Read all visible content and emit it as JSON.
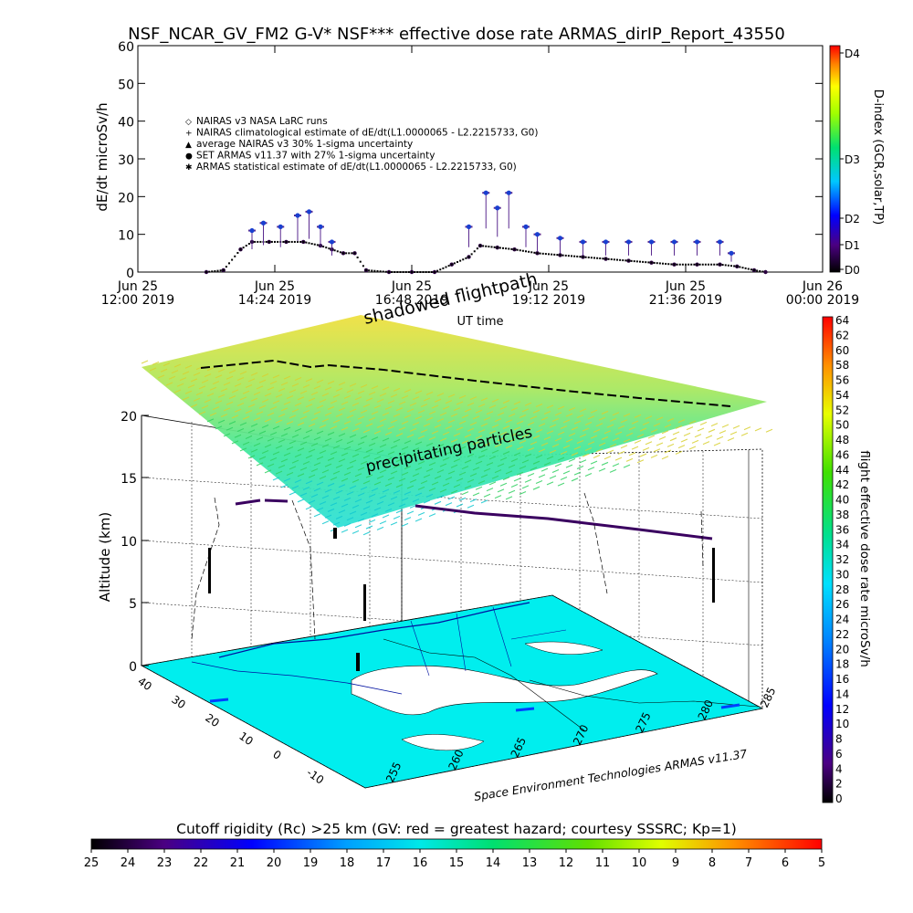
{
  "title": "NSF_NCAR_GV_FM2 G-V* NSF*** effective dose rate ARMAS_dirIP_Report_43550",
  "chart_data": [
    {
      "type": "scatter",
      "ylabel": "dE/dt microSv/h",
      "xlabel": "UT time",
      "ylim": [
        0,
        60
      ],
      "yticks": [
        "0",
        "10",
        "20",
        "30",
        "40",
        "50",
        "60"
      ],
      "xticks": [
        {
          "line1": "Jun 25",
          "line2": "12:00 2019",
          "hour": 12.0
        },
        {
          "line1": "Jun 25",
          "line2": "14:24 2019",
          "hour": 14.4
        },
        {
          "line1": "Jun 25",
          "line2": "16:48 2019",
          "hour": 16.8
        },
        {
          "line1": "Jun 25",
          "line2": "19:12 2019",
          "hour": 19.2
        },
        {
          "line1": "Jun 25",
          "line2": "21:36 2019",
          "hour": 21.6
        },
        {
          "line1": "Jun 26",
          "line2": "00:00 2019",
          "hour": 24.0
        }
      ],
      "xlim_hours": [
        12,
        24
      ],
      "legend": [
        {
          "symbol": "diamond",
          "label": "NAIRAS v3 NASA LaRC runs"
        },
        {
          "symbol": "plus",
          "label": "NAIRAS climatological estimate of dE/dt(L1.0000065 - L2.2215733, G0)"
        },
        {
          "symbol": "triangle",
          "label": "average NAIRAS v3 30% 1-sigma uncertainty"
        },
        {
          "symbol": "blue-dot",
          "label": "SET ARMAS v11.37 with 27% 1-sigma uncertainty"
        },
        {
          "symbol": "asterisk",
          "label": "ARMAS statistical estimate of dE/dt(L1.0000065 - L2.2215733, G0)"
        }
      ],
      "right_colorbar": {
        "label": "D-index (GCR,solar,TP)",
        "ticks": [
          "D0",
          "D1",
          "D2",
          "D3",
          "D4"
        ]
      },
      "series": [
        {
          "name": "NAIRAS climatological estimate",
          "x": [
            13.2,
            13.5,
            13.8,
            14.0,
            14.3,
            14.6,
            14.9,
            15.2,
            15.4,
            15.6,
            15.8,
            16.0,
            16.4,
            16.8,
            17.2,
            17.5,
            17.8,
            18.0,
            18.3,
            18.6,
            19.0,
            19.4,
            19.8,
            20.2,
            20.6,
            21.0,
            21.4,
            21.8,
            22.2,
            22.5,
            22.8,
            23.0
          ],
          "y": [
            0,
            0.5,
            6,
            8,
            8,
            8,
            8,
            7,
            6,
            5,
            5,
            0.5,
            0,
            0,
            0,
            2,
            4,
            7,
            6.5,
            6,
            5,
            4.5,
            4,
            3.5,
            3,
            2.5,
            2,
            2,
            2,
            1.5,
            0.5,
            0
          ]
        },
        {
          "name": "SET ARMAS v11.37",
          "x": [
            14.0,
            14.2,
            14.5,
            14.8,
            15.0,
            15.2,
            15.4,
            17.8,
            18.1,
            18.3,
            18.5,
            18.8,
            19.0,
            19.4,
            19.8,
            20.2,
            20.6,
            21.0,
            21.4,
            21.8,
            22.2,
            22.4
          ],
          "y": [
            11,
            13,
            12,
            15,
            16,
            12,
            8,
            12,
            21,
            17,
            21,
            12,
            10,
            9,
            8,
            8,
            8,
            8,
            8,
            8,
            8,
            5
          ]
        }
      ]
    },
    {
      "type": "3d-flightpath",
      "zlabel": "Altitude (km)",
      "zticks": [
        "0",
        "5",
        "10",
        "15",
        "20"
      ],
      "lat_ticks": [
        "40",
        "30",
        "20",
        "10",
        "0",
        "-10"
      ],
      "lon_ticks": [
        "255",
        "260",
        "265",
        "270",
        "275",
        "280",
        "285"
      ],
      "annotations": [
        "shadowed flightpath",
        "precipitating particles"
      ],
      "credit": "Space Environment Technologies ARMAS v11.37",
      "right_colorbar": {
        "label": "flight effective dose rate microSv/h",
        "ticks": [
          "0",
          "2",
          "4",
          "6",
          "8",
          "10",
          "12",
          "14",
          "16",
          "18",
          "20",
          "22",
          "24",
          "26",
          "28",
          "30",
          "32",
          "34",
          "36",
          "38",
          "40",
          "42",
          "44",
          "46",
          "48",
          "50",
          "52",
          "54",
          "56",
          "58",
          "60",
          "62",
          "64"
        ]
      }
    }
  ],
  "bottom_colorbar": {
    "label": "Cutoff rigidity (Rc) >25 km (GV: red = greatest hazard; courtesy SSSRC; Kp=1)",
    "ticks": [
      "25",
      "24",
      "23",
      "22",
      "21",
      "20",
      "19",
      "18",
      "17",
      "16",
      "15",
      "14",
      "13",
      "12",
      "11",
      "10",
      "9",
      "8",
      "7",
      "6",
      "5"
    ]
  }
}
